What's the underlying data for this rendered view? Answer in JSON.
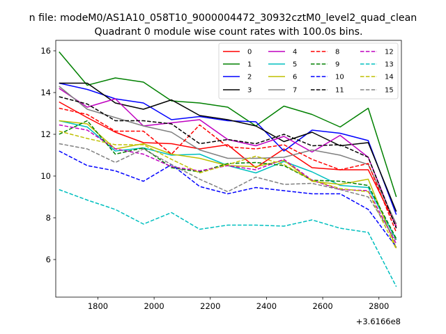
{
  "chart_data": {
    "type": "line",
    "suptitle": "n file: modeM0/AS1A10_058T10_9000004472_30932cztM0_level2_quad_clean",
    "title": "Quadrant 0 module wise count rates with 100.0s bins.",
    "xlabel": "",
    "ylabel": "",
    "offset_label": "+3.6166e8",
    "xlim": [
      1650,
      2880
    ],
    "ylim": [
      4.2,
      16.5
    ],
    "xticks": [
      1800,
      2000,
      2200,
      2400,
      2600,
      2800
    ],
    "yticks": [
      6,
      8,
      10,
      12,
      14,
      16
    ],
    "grid": false,
    "legend_position": "top-right",
    "x": [
      1662,
      1762,
      1862,
      1962,
      2062,
      2162,
      2262,
      2362,
      2462,
      2562,
      2662,
      2762,
      2862
    ],
    "series": [
      {
        "name": "0",
        "color": "#ff0000",
        "dash": "solid",
        "values": [
          13.55,
          12.8,
          12.1,
          11.6,
          11.55,
          11.3,
          11.5,
          10.4,
          11.3,
          10.4,
          10.3,
          10.3,
          7.6
        ]
      },
      {
        "name": "1",
        "color": "#008000",
        "dash": "solid",
        "values": [
          15.95,
          14.35,
          14.7,
          14.5,
          13.6,
          13.5,
          13.3,
          12.4,
          13.35,
          12.95,
          12.35,
          13.25,
          9.0
        ]
      },
      {
        "name": "2",
        "color": "#0000ff",
        "dash": "solid",
        "values": [
          14.45,
          14.15,
          13.7,
          13.5,
          12.7,
          12.85,
          12.65,
          12.6,
          11.2,
          12.2,
          12.05,
          11.7,
          8.15
        ]
      },
      {
        "name": "3",
        "color": "#000000",
        "dash": "solid",
        "values": [
          14.45,
          14.45,
          13.5,
          13.2,
          13.65,
          12.9,
          12.7,
          12.4,
          11.65,
          12.1,
          11.45,
          11.6,
          8.3
        ]
      },
      {
        "name": "4",
        "color": "#bf00bf",
        "dash": "solid",
        "values": [
          14.2,
          13.3,
          13.7,
          12.4,
          12.55,
          12.7,
          11.75,
          11.45,
          11.9,
          11.15,
          11.95,
          10.9,
          7.55
        ]
      },
      {
        "name": "5",
        "color": "#00bfbf",
        "dash": "solid",
        "values": [
          12.65,
          12.35,
          11.2,
          11.35,
          11.0,
          11.05,
          10.5,
          10.15,
          10.7,
          10.2,
          9.55,
          9.45,
          6.95
        ]
      },
      {
        "name": "6",
        "color": "#bfbf00",
        "dash": "solid",
        "values": [
          12.65,
          12.5,
          11.3,
          11.55,
          11.05,
          10.85,
          10.5,
          10.45,
          10.75,
          9.75,
          9.6,
          9.85,
          6.55
        ]
      },
      {
        "name": "7",
        "color": "#808080",
        "dash": "solid",
        "values": [
          14.3,
          13.2,
          12.8,
          12.4,
          12.1,
          11.25,
          10.85,
          10.85,
          10.9,
          11.25,
          11.0,
          10.55,
          7.7
        ]
      },
      {
        "name": "8",
        "color": "#ff0000",
        "dash": "dashed",
        "values": [
          13.25,
          12.95,
          12.15,
          12.15,
          11.05,
          12.45,
          11.4,
          11.3,
          11.5,
          10.8,
          10.3,
          10.6,
          7.3
        ]
      },
      {
        "name": "9",
        "color": "#008000",
        "dash": "dashed",
        "values": [
          12.0,
          12.65,
          11.05,
          11.35,
          10.4,
          10.2,
          10.6,
          10.65,
          10.5,
          9.8,
          9.75,
          9.55,
          7.0
        ]
      },
      {
        "name": "10",
        "color": "#0000ff",
        "dash": "dashed",
        "values": [
          11.2,
          10.5,
          10.25,
          9.75,
          10.55,
          9.5,
          9.15,
          9.45,
          9.3,
          9.15,
          9.15,
          8.4,
          6.6
        ]
      },
      {
        "name": "11",
        "color": "#000000",
        "dash": "dashed",
        "values": [
          13.8,
          13.45,
          12.65,
          12.65,
          12.5,
          11.55,
          11.75,
          11.55,
          12.0,
          11.45,
          11.5,
          10.9,
          7.5
        ]
      },
      {
        "name": "12",
        "color": "#bf00bf",
        "dash": "dashed",
        "values": [
          12.45,
          12.2,
          11.3,
          11.05,
          10.45,
          10.25,
          10.5,
          10.3,
          10.8,
          9.8,
          9.35,
          9.3,
          6.75
        ]
      },
      {
        "name": "13",
        "color": "#00bfbf",
        "dash": "dashed",
        "values": [
          9.35,
          8.85,
          8.4,
          7.7,
          8.25,
          7.45,
          7.65,
          7.65,
          7.6,
          7.9,
          7.5,
          7.3,
          4.7
        ]
      },
      {
        "name": "14",
        "color": "#bfbf00",
        "dash": "dashed",
        "values": [
          12.15,
          11.8,
          11.5,
          11.5,
          10.8,
          10.15,
          10.55,
          10.95,
          10.55,
          9.8,
          9.4,
          9.25,
          6.5
        ]
      },
      {
        "name": "15",
        "color": "#808080",
        "dash": "dashed",
        "values": [
          11.55,
          11.3,
          10.65,
          11.3,
          10.55,
          9.85,
          9.25,
          9.95,
          9.6,
          9.65,
          9.35,
          9.0,
          6.9
        ]
      }
    ]
  }
}
